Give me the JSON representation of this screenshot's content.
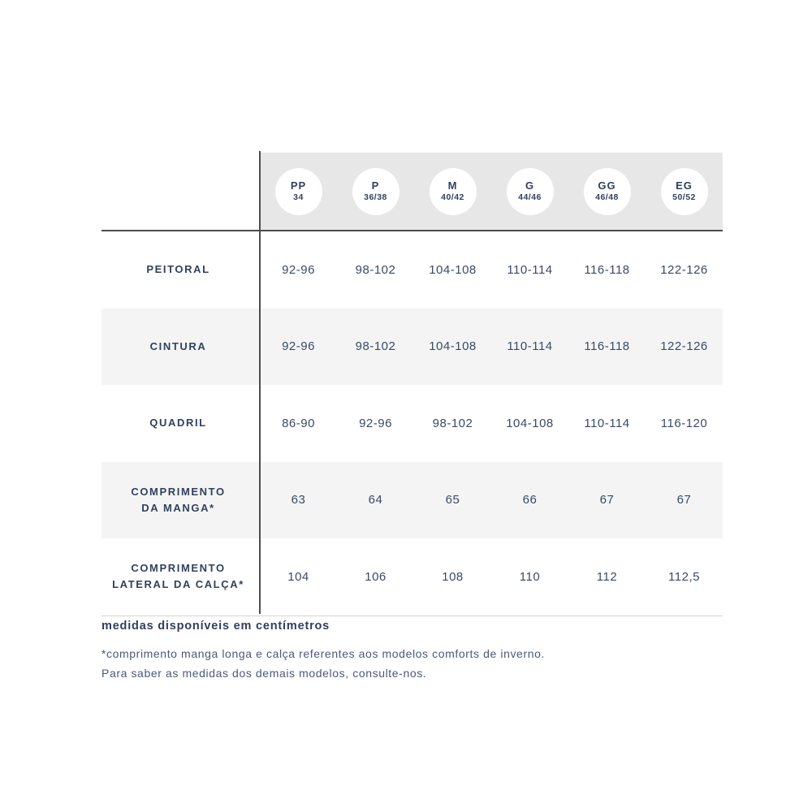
{
  "table": {
    "unit_note": "centímetros",
    "size_columns": [
      {
        "label": "PP",
        "sub": "34"
      },
      {
        "label": "P",
        "sub": "36/38"
      },
      {
        "label": "M",
        "sub": "40/42"
      },
      {
        "label": "G",
        "sub": "44/46"
      },
      {
        "label": "GG",
        "sub": "46/48"
      },
      {
        "label": "EG",
        "sub": "50/52"
      }
    ],
    "rows": [
      {
        "label_line1": "PEITORAL",
        "label_line2": "",
        "values": [
          "92-96",
          "98-102",
          "104-108",
          "110-114",
          "116-118",
          "122-126"
        ]
      },
      {
        "label_line1": "CINTURA",
        "label_line2": "",
        "values": [
          "92-96",
          "98-102",
          "104-108",
          "110-114",
          "116-118",
          "122-126"
        ]
      },
      {
        "label_line1": "QUADRIL",
        "label_line2": "",
        "values": [
          "86-90",
          "92-96",
          "98-102",
          "104-108",
          "110-114",
          "116-120"
        ]
      },
      {
        "label_line1": "COMPRIMENTO",
        "label_line2": "DA MANGA*",
        "values": [
          "63",
          "64",
          "65",
          "66",
          "67",
          "67"
        ]
      },
      {
        "label_line1": "COMPRIMENTO",
        "label_line2": "LATERAL DA CALÇA*",
        "values": [
          "104",
          "106",
          "108",
          "110",
          "112",
          "112,5"
        ]
      }
    ]
  },
  "footnotes": {
    "bold_note": "medidas disponíveis em centímetros",
    "note_line1": "*comprimento manga longa e calça referentes aos modelos comforts de inverno.",
    "note_line2": "Para saber as medidas dos demais modelos, consulte-nos."
  },
  "colors": {
    "header_band": "#e8e7e7",
    "row_stripe": "#f4f4f4",
    "divider_dark": "#4d4d4d",
    "text_navy": "#31415f",
    "text_value": "#3a4a68"
  }
}
